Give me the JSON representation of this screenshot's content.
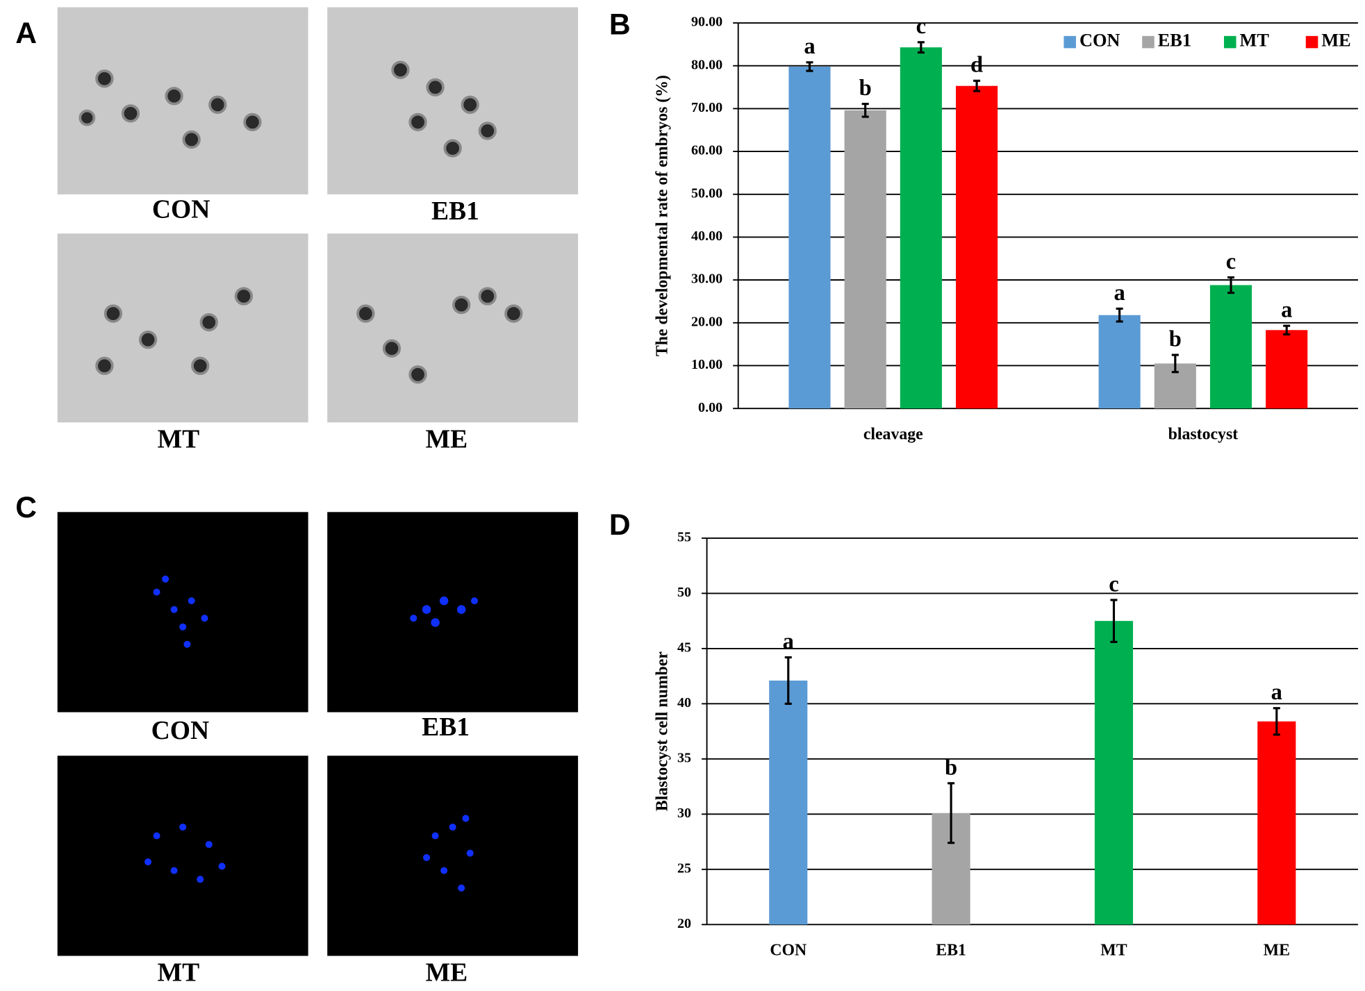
{
  "image_panels": [
    {
      "label": "A",
      "captions": [
        "CON",
        "EB1",
        "MT",
        "ME"
      ]
    },
    {
      "label": "C",
      "captions": [
        "CON",
        "EB1",
        "MT",
        "ME"
      ]
    }
  ],
  "chart_data": [
    {
      "type": "grouped_bar",
      "panel": "B",
      "ylabel": "The developmental rate of embryos (%)",
      "categories": [
        "cleavage",
        "blastocyst"
      ],
      "series": [
        {
          "name": "CON",
          "color": "#5b9bd5",
          "values": [
            79.8,
            21.8
          ],
          "errors": [
            1.0,
            1.5
          ],
          "labels": [
            "a",
            "a"
          ]
        },
        {
          "name": "EB1",
          "color": "#a5a5a5",
          "values": [
            69.6,
            10.5
          ],
          "errors": [
            1.5,
            2.0
          ],
          "labels": [
            "b",
            "b"
          ]
        },
        {
          "name": "MT",
          "color": "#00b050",
          "values": [
            84.3,
            28.8
          ],
          "errors": [
            1.2,
            1.8
          ],
          "labels": [
            "c",
            "c"
          ]
        },
        {
          "name": "ME",
          "color": "#ff0000",
          "values": [
            75.3,
            18.3
          ],
          "errors": [
            1.2,
            1.0
          ],
          "labels": [
            "d",
            "a"
          ]
        }
      ],
      "ylim": [
        0,
        90
      ],
      "yticks": [
        {
          "value": 0,
          "label": "0.00"
        },
        {
          "value": 10,
          "label": "10.00"
        },
        {
          "value": 20,
          "label": "20.00"
        },
        {
          "value": 30,
          "label": "30.00"
        },
        {
          "value": 40,
          "label": "40.00"
        },
        {
          "value": 50,
          "label": "50.00"
        },
        {
          "value": 60,
          "label": "60.00"
        },
        {
          "value": 70,
          "label": "70.00"
        },
        {
          "value": 80,
          "label": "80.00"
        },
        {
          "value": 90,
          "label": "90.00"
        }
      ],
      "grid": true,
      "legend": "top-right"
    },
    {
      "type": "bar",
      "panel": "D",
      "ylabel": "Blastocyst cell number",
      "categories": [
        "CON",
        "EB1",
        "MT",
        "ME"
      ],
      "values": [
        42.1,
        30.1,
        47.5,
        38.4
      ],
      "errors": [
        2.1,
        2.7,
        1.9,
        1.2
      ],
      "labels": [
        "a",
        "b",
        "c",
        "a"
      ],
      "colors": [
        "#5b9bd5",
        "#a5a5a5",
        "#00b050",
        "#ff0000"
      ],
      "ylim": [
        20,
        55
      ],
      "yticks": [
        20,
        25,
        30,
        35,
        40,
        45,
        50,
        55
      ],
      "grid": true
    }
  ]
}
